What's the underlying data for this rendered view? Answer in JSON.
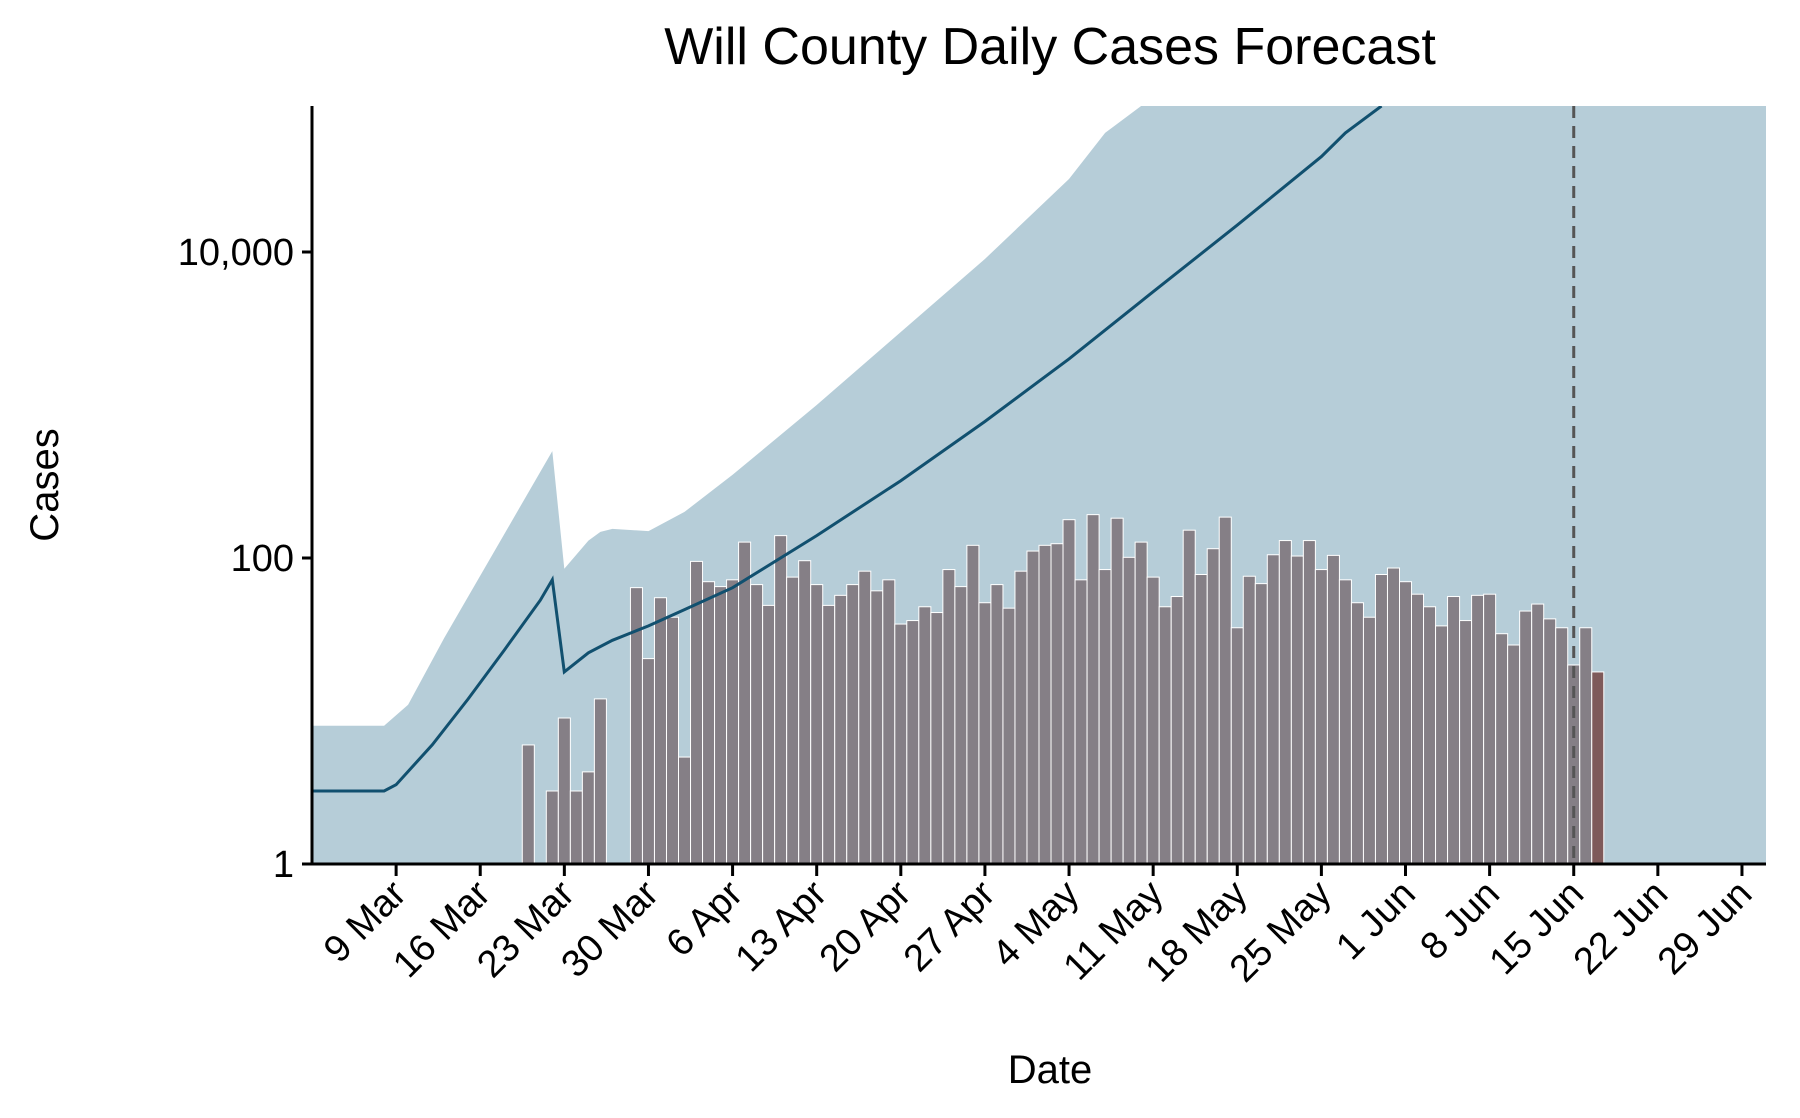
{
  "chart_data": {
    "type": "bar",
    "title": "Will County Daily Cases Forecast",
    "xlabel": "Date",
    "ylabel": "Cases",
    "y_scale": "log10",
    "ylim": [
      1,
      90000
    ],
    "xlim": [
      "2020-03-02",
      "2020-07-01"
    ],
    "x_ticks": [
      {
        "date": "2020-03-09",
        "label": "9 Mar"
      },
      {
        "date": "2020-03-16",
        "label": "16 Mar"
      },
      {
        "date": "2020-03-23",
        "label": "23 Mar"
      },
      {
        "date": "2020-03-30",
        "label": "30 Mar"
      },
      {
        "date": "2020-04-06",
        "label": "6 Apr"
      },
      {
        "date": "2020-04-13",
        "label": "13 Apr"
      },
      {
        "date": "2020-04-20",
        "label": "20 Apr"
      },
      {
        "date": "2020-04-27",
        "label": "27 Apr"
      },
      {
        "date": "2020-05-04",
        "label": "4 May"
      },
      {
        "date": "2020-05-11",
        "label": "11 May"
      },
      {
        "date": "2020-05-18",
        "label": "18 May"
      },
      {
        "date": "2020-05-25",
        "label": "25 May"
      },
      {
        "date": "2020-06-01",
        "label": "1 Jun"
      },
      {
        "date": "2020-06-08",
        "label": "8 Jun"
      },
      {
        "date": "2020-06-15",
        "label": "15 Jun"
      },
      {
        "date": "2020-06-22",
        "label": "22 Jun"
      },
      {
        "date": "2020-06-29",
        "label": "29 Jun"
      }
    ],
    "y_ticks": [
      {
        "value": 1,
        "label": "1"
      },
      {
        "value": 100,
        "label": "100"
      },
      {
        "value": 10000,
        "label": "10,000"
      }
    ],
    "forecast_start": "2020-06-15",
    "grid": false,
    "legend": "none",
    "colors": {
      "bar": "#857f86",
      "bar_outline": "#ffffff",
      "ribbon": "#b6cdd8",
      "line": "#11506f",
      "forecast_region": "#a5a5a5",
      "divider": "#555555",
      "last_bar": "#7e5a5a"
    },
    "observed_cases": {
      "start_date": "2020-03-20",
      "values": [
        6,
        0,
        3,
        9,
        3,
        4,
        12,
        0,
        0,
        64,
        22,
        55,
        41,
        5,
        95,
        70,
        65,
        72,
        127,
        67,
        49,
        140,
        75,
        96,
        67,
        49,
        57,
        67,
        82,
        61,
        72,
        37,
        39,
        48,
        44,
        84,
        65,
        121,
        51,
        67,
        47,
        82,
        111,
        121,
        124,
        178,
        72,
        192,
        84,
        182,
        101,
        127,
        75,
        48,
        56,
        152,
        78,
        115,
        185,
        35,
        76,
        68,
        105,
        130,
        103,
        130,
        84,
        104,
        72,
        51,
        41,
        78,
        86,
        70,
        58,
        48,
        36,
        56,
        39,
        57,
        58,
        32,
        27,
        45,
        50,
        40,
        35,
        20,
        35,
        18
      ]
    },
    "series": [
      {
        "name": "median",
        "points": [
          [
            "2020-03-02",
            3
          ],
          [
            "2020-03-07",
            3
          ],
          [
            "2020-03-08",
            3
          ],
          [
            "2020-03-09",
            3.3
          ],
          [
            "2020-03-12",
            6
          ],
          [
            "2020-03-15",
            12
          ],
          [
            "2020-03-18",
            25
          ],
          [
            "2020-03-21",
            53
          ],
          [
            "2020-03-22",
            72
          ],
          [
            "2020-03-23",
            18
          ],
          [
            "2020-03-25",
            24
          ],
          [
            "2020-03-27",
            29
          ],
          [
            "2020-03-30",
            36
          ],
          [
            "2020-04-02",
            46
          ],
          [
            "2020-04-06",
            64
          ],
          [
            "2020-04-13",
            140
          ],
          [
            "2020-04-20",
            320
          ],
          [
            "2020-04-27",
            780
          ],
          [
            "2020-05-04",
            2000
          ],
          [
            "2020-05-11",
            5500
          ],
          [
            "2020-05-18",
            15000
          ],
          [
            "2020-05-25",
            42000
          ],
          [
            "2020-05-27",
            60000
          ],
          [
            "2020-05-30",
            90000
          ]
        ]
      },
      {
        "name": "upper",
        "points": [
          [
            "2020-03-02",
            8
          ],
          [
            "2020-03-08",
            8
          ],
          [
            "2020-03-10",
            11
          ],
          [
            "2020-03-13",
            30
          ],
          [
            "2020-03-22",
            500
          ],
          [
            "2020-03-23",
            85
          ],
          [
            "2020-03-25",
            130
          ],
          [
            "2020-03-26",
            148
          ],
          [
            "2020-03-27",
            155
          ],
          [
            "2020-03-30",
            150
          ],
          [
            "2020-04-02",
            200
          ],
          [
            "2020-04-06",
            350
          ],
          [
            "2020-04-13",
            1000
          ],
          [
            "2020-04-20",
            3000
          ],
          [
            "2020-04-27",
            9000
          ],
          [
            "2020-05-04",
            30000
          ],
          [
            "2020-05-07",
            60000
          ],
          [
            "2020-05-10",
            90000
          ],
          [
            "2020-07-01",
            90000
          ]
        ]
      },
      {
        "name": "lower",
        "points": [
          [
            "2020-03-02",
            1
          ],
          [
            "2020-07-01",
            1
          ]
        ]
      }
    ]
  }
}
